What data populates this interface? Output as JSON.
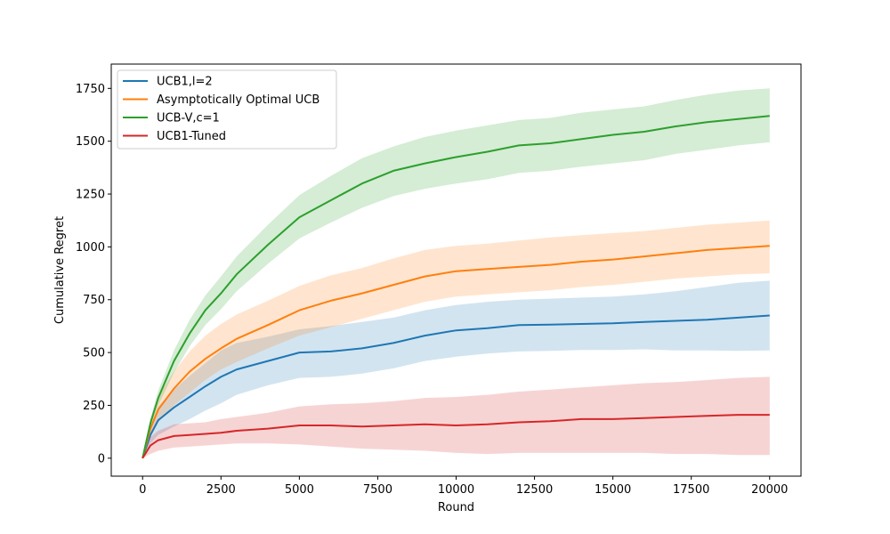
{
  "chart_data": {
    "type": "line",
    "title": "",
    "xlabel": "Round",
    "ylabel": "Cumulative Regret",
    "xlim": [
      -1000,
      21000
    ],
    "ylim": [
      -85,
      1865
    ],
    "xticks": [
      0,
      2500,
      5000,
      7500,
      10000,
      12500,
      15000,
      17500,
      20000
    ],
    "yticks": [
      0,
      250,
      500,
      750,
      1000,
      1250,
      1500,
      1750
    ],
    "grid": false,
    "legend_position": "top-left",
    "x": [
      0,
      250,
      500,
      1000,
      1500,
      2000,
      2500,
      3000,
      4000,
      5000,
      6000,
      7000,
      8000,
      9000,
      10000,
      11000,
      12000,
      13000,
      14000,
      15000,
      16000,
      17000,
      18000,
      19000,
      20000
    ],
    "series": [
      {
        "name": "UCB1,l=2",
        "color": "#1f77b4",
        "mean": [
          0,
          110,
          180,
          240,
          290,
          340,
          385,
          420,
          460,
          500,
          505,
          520,
          545,
          580,
          605,
          615,
          630,
          632,
          635,
          638,
          645,
          650,
          655,
          665,
          675
        ],
        "lower": [
          0,
          70,
          110,
          150,
          185,
          225,
          260,
          300,
          345,
          380,
          385,
          400,
          425,
          460,
          480,
          495,
          505,
          508,
          512,
          512,
          515,
          510,
          510,
          508,
          510
        ],
        "upper": [
          0,
          145,
          245,
          325,
          390,
          450,
          510,
          545,
          575,
          610,
          625,
          645,
          665,
          700,
          725,
          740,
          750,
          755,
          760,
          765,
          775,
          790,
          810,
          830,
          840
        ]
      },
      {
        "name": "Asymptotically Optimal UCB",
        "color": "#ff7f0e",
        "mean": [
          0,
          140,
          230,
          330,
          410,
          470,
          520,
          565,
          630,
          700,
          745,
          780,
          820,
          860,
          885,
          895,
          905,
          915,
          930,
          940,
          955,
          970,
          985,
          995,
          1005
        ],
        "lower": [
          0,
          100,
          170,
          250,
          310,
          370,
          420,
          455,
          520,
          580,
          620,
          660,
          700,
          740,
          765,
          775,
          785,
          795,
          810,
          820,
          835,
          850,
          860,
          870,
          875
        ],
        "upper": [
          0,
          185,
          295,
          410,
          505,
          580,
          635,
          680,
          745,
          815,
          865,
          900,
          945,
          985,
          1005,
          1015,
          1030,
          1045,
          1055,
          1065,
          1075,
          1090,
          1105,
          1115,
          1125
        ]
      },
      {
        "name": "UCB-V,c=1",
        "color": "#2ca02c",
        "mean": [
          0,
          165,
          285,
          460,
          590,
          700,
          780,
          870,
          1010,
          1140,
          1220,
          1300,
          1360,
          1395,
          1425,
          1450,
          1480,
          1490,
          1510,
          1530,
          1545,
          1570,
          1590,
          1605,
          1620
        ],
        "lower": [
          0,
          145,
          250,
          405,
          530,
          630,
          705,
          790,
          920,
          1040,
          1115,
          1185,
          1240,
          1275,
          1300,
          1320,
          1350,
          1360,
          1380,
          1395,
          1410,
          1440,
          1460,
          1480,
          1495
        ],
        "upper": [
          0,
          185,
          320,
          510,
          655,
          770,
          860,
          955,
          1105,
          1245,
          1335,
          1420,
          1475,
          1520,
          1550,
          1575,
          1600,
          1610,
          1635,
          1650,
          1665,
          1695,
          1720,
          1740,
          1750
        ]
      },
      {
        "name": "UCB1-Tuned",
        "color": "#d62728",
        "mean": [
          0,
          60,
          85,
          105,
          110,
          115,
          120,
          130,
          140,
          155,
          155,
          150,
          155,
          160,
          155,
          160,
          170,
          175,
          185,
          185,
          190,
          195,
          200,
          205,
          205
        ],
        "lower": [
          0,
          20,
          35,
          50,
          55,
          60,
          65,
          70,
          70,
          65,
          55,
          45,
          40,
          35,
          25,
          20,
          25,
          25,
          25,
          25,
          25,
          20,
          20,
          15,
          15
        ],
        "upper": [
          0,
          100,
          130,
          160,
          165,
          170,
          185,
          195,
          215,
          245,
          255,
          260,
          270,
          285,
          290,
          300,
          315,
          325,
          335,
          345,
          355,
          360,
          370,
          380,
          385
        ]
      }
    ]
  }
}
